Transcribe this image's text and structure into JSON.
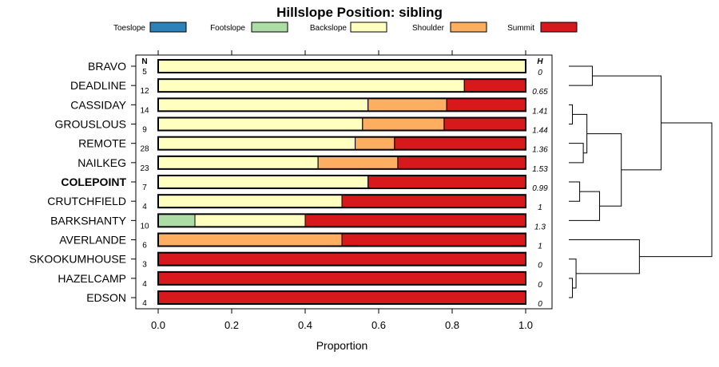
{
  "chart_data": {
    "type": "bar",
    "orientation": "horizontal",
    "stacked": true,
    "title": "Hillslope Position: sibling",
    "xlabel": "Proportion",
    "ylabel": "",
    "xlim": [
      0,
      1
    ],
    "x_ticks": [
      "0.0",
      "0.2",
      "0.4",
      "0.6",
      "0.8",
      "1.0"
    ],
    "x_tick_values": [
      0,
      0.2,
      0.4,
      0.6,
      0.8,
      1.0
    ],
    "n_header": "N",
    "h_header": "H",
    "legend": {
      "placement": "top",
      "entries": [
        {
          "name": "Toeslope",
          "color": "#2b83ba"
        },
        {
          "name": "Footslope",
          "color": "#abdda4"
        },
        {
          "name": "Backslope",
          "color": "#ffffbf"
        },
        {
          "name": "Shoulder",
          "color": "#fdae61"
        },
        {
          "name": "Summit",
          "color": "#d7191c"
        }
      ]
    },
    "rows": [
      {
        "label": "BRAVO",
        "n": "5",
        "h": "0",
        "bold": false,
        "values": [
          0,
          0,
          1.0,
          0,
          0
        ]
      },
      {
        "label": "DEADLINE",
        "n": "12",
        "h": "0.65",
        "bold": false,
        "values": [
          0,
          0,
          0.833,
          0,
          0.167
        ]
      },
      {
        "label": "CASSIDAY",
        "n": "14",
        "h": "1.41",
        "bold": false,
        "values": [
          0,
          0,
          0.571,
          0.214,
          0.215
        ]
      },
      {
        "label": "GROUSLOUS",
        "n": "9",
        "h": "1.44",
        "bold": false,
        "values": [
          0,
          0,
          0.556,
          0.222,
          0.222
        ]
      },
      {
        "label": "REMOTE",
        "n": "28",
        "h": "1.36",
        "bold": false,
        "values": [
          0,
          0,
          0.536,
          0.107,
          0.357
        ]
      },
      {
        "label": "NAILKEG",
        "n": "23",
        "h": "1.53",
        "bold": false,
        "values": [
          0,
          0,
          0.435,
          0.217,
          0.348
        ]
      },
      {
        "label": "COLEPOINT",
        "n": "7",
        "h": "0.99",
        "bold": true,
        "values": [
          0,
          0,
          0.571,
          0,
          0.429
        ]
      },
      {
        "label": "CRUTCHFIELD",
        "n": "4",
        "h": "1",
        "bold": false,
        "values": [
          0,
          0,
          0.5,
          0,
          0.5
        ]
      },
      {
        "label": "BARKSHANTY",
        "n": "10",
        "h": "1.3",
        "bold": false,
        "values": [
          0,
          0.1,
          0.3,
          0,
          0.6
        ]
      },
      {
        "label": "AVERLANDE",
        "n": "6",
        "h": "1",
        "bold": false,
        "values": [
          0,
          0,
          0,
          0.5,
          0.5
        ]
      },
      {
        "label": "SKOOKUMHOUSE",
        "n": "3",
        "h": "0",
        "bold": false,
        "values": [
          0,
          0,
          0,
          0,
          1.0
        ]
      },
      {
        "label": "HAZELCAMP",
        "n": "4",
        "h": "0",
        "bold": false,
        "values": [
          0,
          0,
          0,
          0,
          1.0
        ]
      },
      {
        "label": "EDSON",
        "n": "4",
        "h": "0",
        "bold": false,
        "values": [
          0,
          0,
          0,
          0,
          1.0
        ]
      }
    ],
    "dendrogram": {
      "leaf_order": [
        "BRAVO",
        "DEADLINE",
        "CASSIDAY",
        "GROUSLOUS",
        "REMOTE",
        "NAILKEG",
        "COLEPOINT",
        "CRUTCHFIELD",
        "BARKSHANTY",
        "AVERLANDE",
        "SKOOKUMHOUSE",
        "HAZELCAMP",
        "EDSON"
      ],
      "merges": [
        {
          "a": "BRAVO",
          "b": "DEADLINE",
          "height": 0.13
        },
        {
          "a": "CASSIDAY",
          "b": "GROUSLOUS",
          "height": 0.02
        },
        {
          "a": "REMOTE",
          "b": "NAILKEG",
          "height": 0.08
        },
        {
          "a": "CASSIDAY+GROUSLOUS",
          "b": "REMOTE+NAILKEG",
          "height": 0.1
        },
        {
          "a": "COLEPOINT",
          "b": "CRUTCHFIELD",
          "height": 0.06
        },
        {
          "a": "COLEPOINT+CRUTCHFIELD",
          "b": "BARKSHANTY",
          "height": 0.17
        },
        {
          "a": "CASSIDAY..NAILKEG",
          "b": "COLEPOINT..BARKSHANTY",
          "height": 0.29
        },
        {
          "a": "BRAVO+DEADLINE",
          "b": "CASSIDAY..BARKSHANTY",
          "height": 0.51
        },
        {
          "a": "HAZELCAMP",
          "b": "EDSON",
          "height": 0.02
        },
        {
          "a": "SKOOKUMHOUSE",
          "b": "HAZELCAMP+EDSON",
          "height": 0.04
        },
        {
          "a": "AVERLANDE",
          "b": "SKOOKUMHOUSE..EDSON",
          "height": 0.39
        },
        {
          "a": "BRAVO..BARKSHANTY",
          "b": "AVERLANDE..EDSON",
          "height": 0.79
        }
      ]
    }
  }
}
